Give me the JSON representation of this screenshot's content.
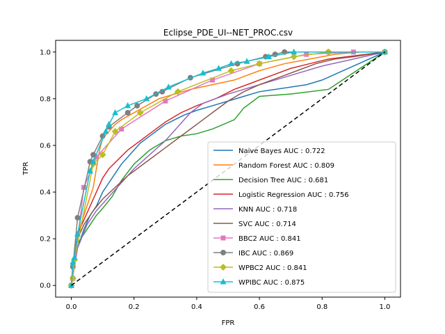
{
  "chart_data": {
    "type": "line",
    "title": "Eclipse_PDE_UI--NET_PROC.csv",
    "xlabel": "FPR",
    "ylabel": "TPR",
    "xlim": [
      -0.05,
      1.05
    ],
    "ylim": [
      -0.05,
      1.05
    ],
    "xticks": [
      "0.0",
      "0.2",
      "0.4",
      "0.6",
      "0.8",
      "1.0"
    ],
    "yticks": [
      "0.0",
      "0.2",
      "0.4",
      "0.6",
      "0.8",
      "1.0"
    ],
    "grid": false,
    "legend_position": "lower-right",
    "diagonal": {
      "x": [
        0,
        1
      ],
      "y": [
        0,
        1
      ],
      "color": "#000000",
      "style": "dashed"
    },
    "series": [
      {
        "name": "Naive Bayes AUC : 0.722",
        "color": "#1f77b4",
        "marker": "none",
        "x": [
          0,
          0.01,
          0.02,
          0.04,
          0.06,
          0.08,
          0.1,
          0.12,
          0.14,
          0.16,
          0.18,
          0.2,
          0.22,
          0.25,
          0.28,
          0.3,
          0.33,
          0.36,
          0.4,
          0.45,
          0.5,
          0.55,
          0.6,
          0.65,
          0.7,
          0.75,
          0.8,
          0.85,
          0.9,
          0.95,
          1.0
        ],
        "y": [
          0,
          0.1,
          0.16,
          0.24,
          0.3,
          0.34,
          0.4,
          0.44,
          0.48,
          0.52,
          0.55,
          0.58,
          0.61,
          0.64,
          0.67,
          0.69,
          0.71,
          0.73,
          0.75,
          0.77,
          0.79,
          0.81,
          0.83,
          0.84,
          0.85,
          0.86,
          0.88,
          0.91,
          0.94,
          0.97,
          1.0
        ]
      },
      {
        "name": "Random Forest AUC : 0.809",
        "color": "#ff7f0e",
        "marker": "none",
        "x": [
          0,
          0.01,
          0.02,
          0.03,
          0.05,
          0.07,
          0.08,
          0.09,
          0.1,
          0.12,
          0.14,
          0.16,
          0.2,
          0.24,
          0.28,
          0.33,
          0.38,
          0.45,
          0.52,
          0.6,
          0.68,
          0.76,
          0.84,
          0.92,
          1.0
        ],
        "y": [
          0,
          0.12,
          0.2,
          0.26,
          0.34,
          0.42,
          0.5,
          0.58,
          0.63,
          0.66,
          0.69,
          0.71,
          0.74,
          0.77,
          0.8,
          0.82,
          0.84,
          0.86,
          0.88,
          0.92,
          0.95,
          0.97,
          0.99,
          1.0,
          1.0
        ]
      },
      {
        "name": "Decision Tree AUC : 0.681",
        "color": "#2ca02c",
        "marker": "none",
        "x": [
          0,
          0.02,
          0.05,
          0.08,
          0.1,
          0.13,
          0.16,
          0.2,
          0.25,
          0.3,
          0.35,
          0.4,
          0.45,
          0.52,
          0.55,
          0.6,
          0.7,
          0.82,
          1.0
        ],
        "y": [
          0,
          0.18,
          0.24,
          0.3,
          0.33,
          0.38,
          0.45,
          0.52,
          0.58,
          0.62,
          0.64,
          0.65,
          0.67,
          0.71,
          0.76,
          0.81,
          0.82,
          0.84,
          1.0
        ]
      },
      {
        "name": "Logistic Regression AUC : 0.756",
        "color": "#d62728",
        "marker": "none",
        "x": [
          0,
          0.01,
          0.02,
          0.04,
          0.06,
          0.08,
          0.1,
          0.12,
          0.15,
          0.18,
          0.22,
          0.26,
          0.3,
          0.35,
          0.4,
          0.46,
          0.52,
          0.58,
          0.64,
          0.7,
          0.76,
          0.82,
          0.88,
          0.94,
          1.0
        ],
        "y": [
          0,
          0.14,
          0.22,
          0.28,
          0.34,
          0.4,
          0.46,
          0.5,
          0.54,
          0.58,
          0.62,
          0.66,
          0.7,
          0.74,
          0.77,
          0.8,
          0.84,
          0.87,
          0.9,
          0.93,
          0.95,
          0.97,
          0.98,
          0.99,
          1.0
        ]
      },
      {
        "name": "KNN AUC : 0.718",
        "color": "#9467bd",
        "marker": "none",
        "x": [
          0,
          0.02,
          0.05,
          0.08,
          0.12,
          0.16,
          0.2,
          0.25,
          0.3,
          0.34,
          0.38,
          0.42,
          0.5,
          0.6,
          0.7,
          0.8,
          0.9,
          1.0
        ],
        "y": [
          0,
          0.16,
          0.26,
          0.32,
          0.38,
          0.44,
          0.5,
          0.56,
          0.62,
          0.68,
          0.74,
          0.78,
          0.82,
          0.86,
          0.9,
          0.94,
          0.97,
          1.0
        ]
      },
      {
        "name": "SVC AUC : 0.714",
        "color": "#8c564b",
        "marker": "none",
        "x": [
          0,
          0.02,
          0.04,
          0.07,
          0.1,
          0.14,
          0.18,
          0.22,
          0.26,
          0.3,
          0.34,
          0.38,
          0.42,
          0.46,
          0.5,
          0.55,
          0.6,
          0.66,
          0.72,
          0.78,
          0.84,
          0.9,
          0.95,
          1.0
        ],
        "y": [
          0,
          0.2,
          0.26,
          0.32,
          0.37,
          0.42,
          0.47,
          0.51,
          0.55,
          0.59,
          0.63,
          0.67,
          0.71,
          0.75,
          0.79,
          0.83,
          0.86,
          0.89,
          0.92,
          0.95,
          0.97,
          0.98,
          0.99,
          1.0
        ]
      },
      {
        "name": "BBC2 AUC : 0.841",
        "color": "#e377c2",
        "marker": "square",
        "x": [
          0,
          0.005,
          0.04,
          0.08,
          0.16,
          0.3,
          0.45,
          0.6,
          0.75,
          0.9,
          1.0
        ],
        "y": [
          0,
          0.03,
          0.42,
          0.55,
          0.67,
          0.79,
          0.88,
          0.95,
          0.99,
          1.0,
          1.0
        ]
      },
      {
        "name": "IBC AUC : 0.869",
        "color": "#7f7f7f",
        "marker": "circle",
        "x": [
          0,
          0.005,
          0.02,
          0.06,
          0.07,
          0.1,
          0.12,
          0.18,
          0.21,
          0.27,
          0.29,
          0.38,
          0.53,
          0.62,
          0.65,
          0.68,
          0.82,
          1.0
        ],
        "y": [
          0,
          0.08,
          0.29,
          0.53,
          0.56,
          0.64,
          0.68,
          0.74,
          0.77,
          0.82,
          0.83,
          0.89,
          0.95,
          0.98,
          0.99,
          1.0,
          1.0,
          1.0
        ]
      },
      {
        "name": "WPBC2 AUC : 0.841",
        "color": "#bcbd22",
        "marker": "diamond",
        "x": [
          0,
          0.005,
          0.01,
          0.07,
          0.1,
          0.14,
          0.22,
          0.34,
          0.51,
          0.6,
          0.71,
          0.82,
          1.0
        ],
        "y": [
          0,
          0.03,
          0.11,
          0.52,
          0.56,
          0.66,
          0.74,
          0.83,
          0.92,
          0.95,
          0.98,
          1.0,
          1.0
        ]
      },
      {
        "name": "WPIBC AUC : 0.875",
        "color": "#17becf",
        "marker": "triangle",
        "x": [
          0,
          0.005,
          0.01,
          0.02,
          0.06,
          0.07,
          0.11,
          0.12,
          0.14,
          0.18,
          0.24,
          0.31,
          0.42,
          0.47,
          0.51,
          0.56,
          0.63,
          0.71,
          1.0
        ],
        "y": [
          0,
          0.1,
          0.12,
          0.22,
          0.49,
          0.53,
          0.66,
          0.69,
          0.74,
          0.77,
          0.8,
          0.85,
          0.91,
          0.93,
          0.95,
          0.96,
          0.98,
          1.0,
          1.0
        ]
      }
    ]
  }
}
